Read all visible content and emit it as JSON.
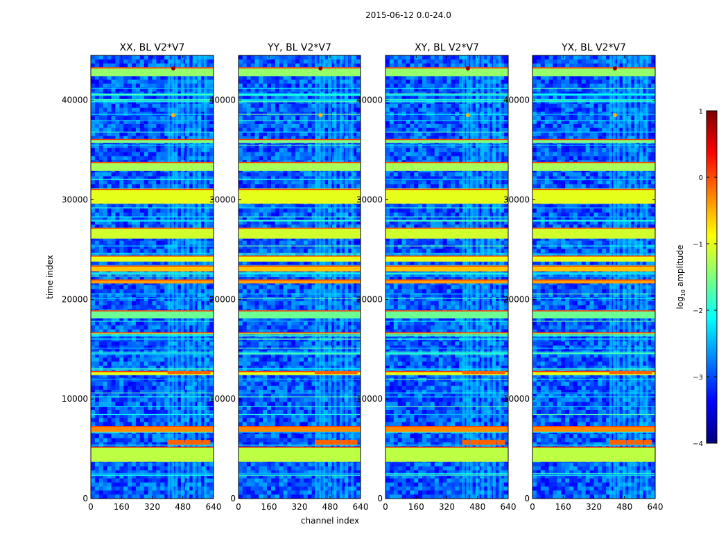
{
  "figure": {
    "suptitle": "2015-06-12 0.0-24.0",
    "xlabel": "channel index",
    "ylabel": "time index"
  },
  "colorbar": {
    "label": "log10 amplitude",
    "label_base": "log",
    "label_sub": "10",
    "label_rest": " amplitude",
    "ticks": [
      "−4",
      "−3",
      "−2",
      "−1",
      "0",
      "1"
    ],
    "range": [
      -4,
      1
    ],
    "colormap": "jet",
    "colors": [
      "#00007f",
      "#0000ff",
      "#007fff",
      "#00ffff",
      "#7fff7f",
      "#ffff00",
      "#ff7f00",
      "#ff0000",
      "#7f0000"
    ]
  },
  "chart_data": {
    "type": "heatmap",
    "description_of_values": "waterfall of log10 amplitude vs channel and time",
    "xlim": [
      0,
      640
    ],
    "ylim": [
      0,
      44500
    ],
    "xticks": [
      "0",
      "160",
      "320",
      "480",
      "640"
    ],
    "yticks": [
      "0",
      "10000",
      "20000",
      "30000",
      "40000"
    ],
    "panels": [
      {
        "title": "XX, BL V2*V7"
      },
      {
        "title": "YY, BL V2*V7"
      },
      {
        "title": "XY, BL V2*V7"
      },
      {
        "title": "YX, BL V2*V7"
      }
    ],
    "color_range": [
      -4,
      1
    ]
  }
}
